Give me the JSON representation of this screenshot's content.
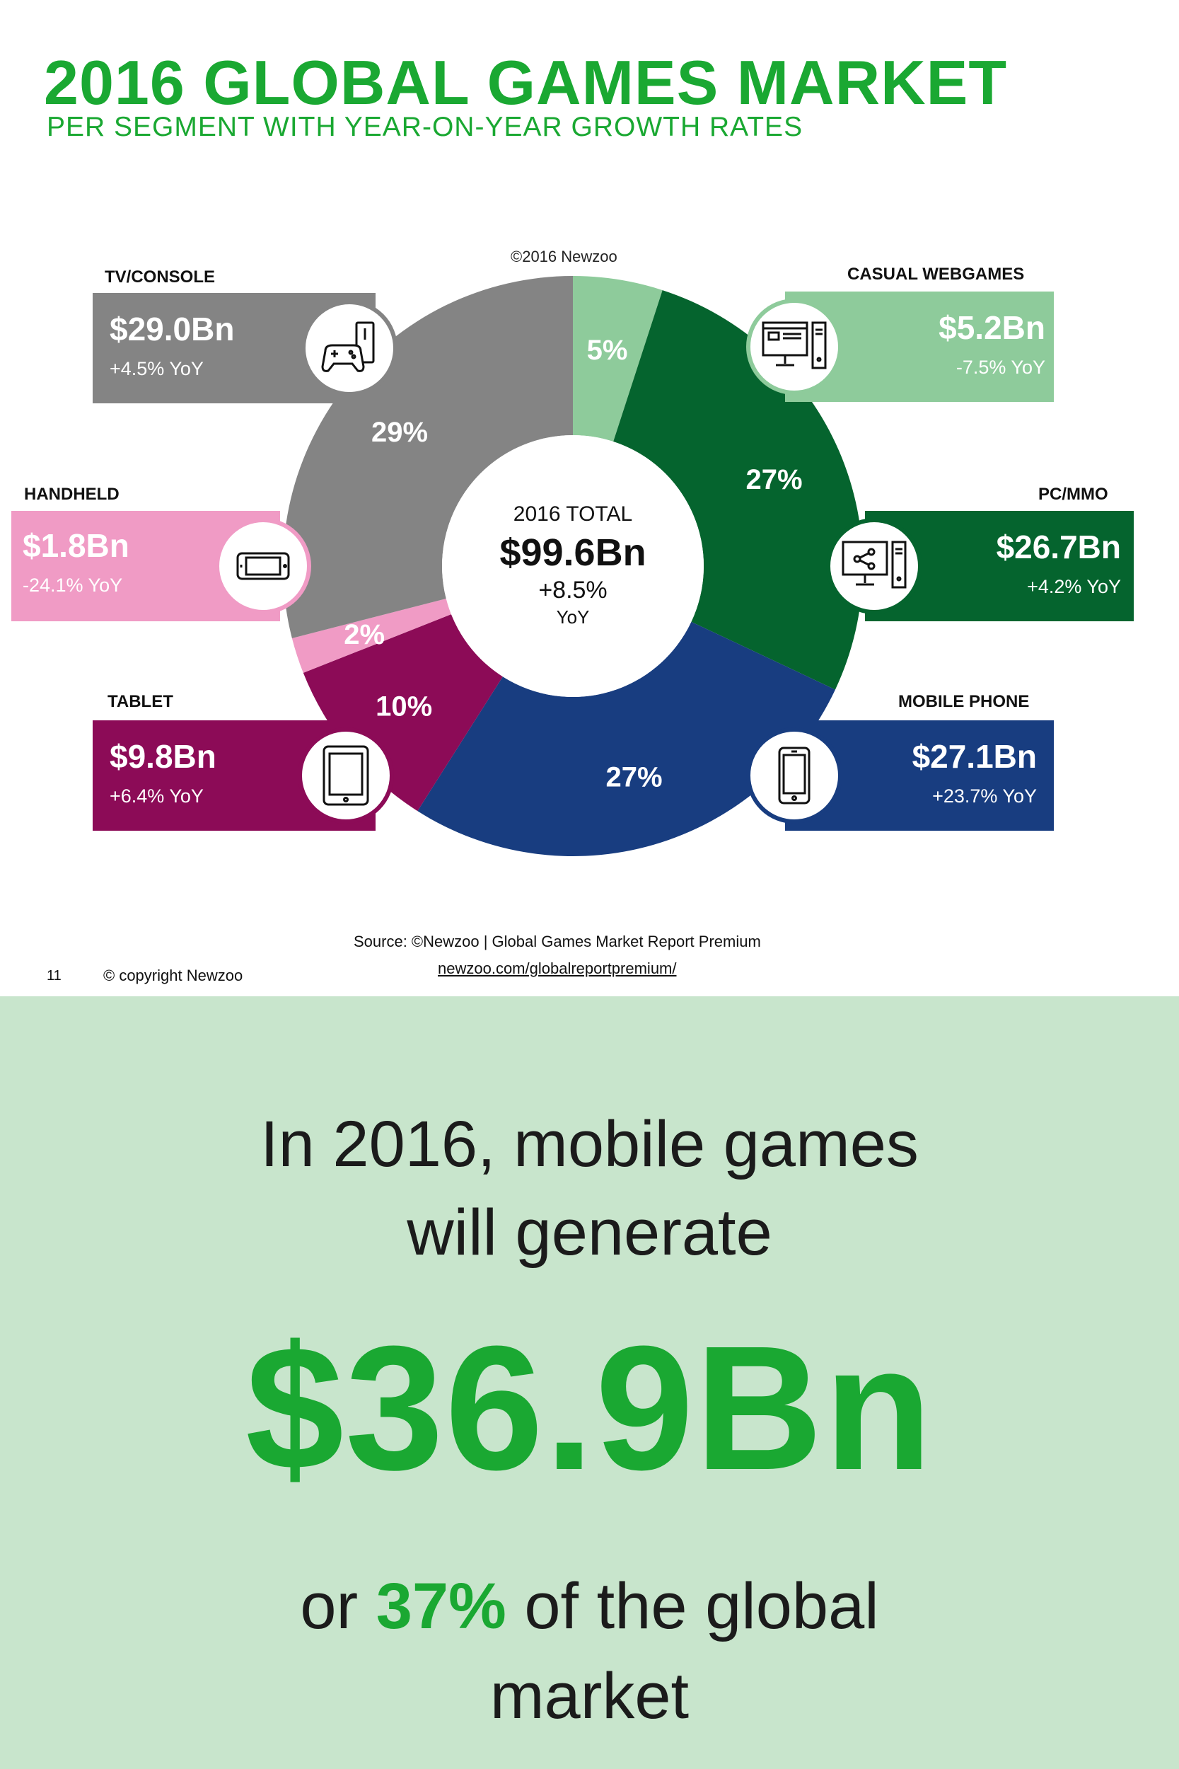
{
  "header": {
    "title": "2016 GLOBAL GAMES MARKET",
    "subtitle": "PER SEGMENT WITH YEAR-ON-YEAR GROWTH RATES",
    "copyright_top": "©2016 Newzoo"
  },
  "chart_data": {
    "type": "pie",
    "title": "2016 GLOBAL GAMES MARKET",
    "subtitle": "PER SEGMENT WITH YEAR-ON-YEAR GROWTH RATES",
    "center": {
      "label": "2016 TOTAL",
      "value": "$99.6Bn",
      "growth": "+8.5%",
      "growth_unit": "YoY"
    },
    "slices": [
      {
        "name": "CASUAL WEBGAMES",
        "percent": 5,
        "pct_label": "5%",
        "value_bn": 5.2,
        "value_label": "$5.2Bn",
        "yoy": "-7.5% YoY",
        "color": "#8ecb9b",
        "icon": "desktop-browser-icon"
      },
      {
        "name": "PC/MMO",
        "percent": 27,
        "pct_label": "27%",
        "value_bn": 26.7,
        "value_label": "$26.7Bn",
        "yoy": "+4.2% YoY",
        "color": "#05642e",
        "icon": "desktop-share-icon"
      },
      {
        "name": "MOBILE PHONE",
        "percent": 27,
        "pct_label": "27%",
        "value_bn": 27.1,
        "value_label": "$27.1Bn",
        "yoy": "+23.7% YoY",
        "color": "#183d80",
        "icon": "smartphone-icon"
      },
      {
        "name": "TABLET",
        "percent": 10,
        "pct_label": "10%",
        "value_bn": 9.8,
        "value_label": "$9.8Bn",
        "yoy": "+6.4% YoY",
        "color": "#8c0b57",
        "icon": "tablet-icon"
      },
      {
        "name": "HANDHELD",
        "percent": 2,
        "pct_label": "2%",
        "value_bn": 1.8,
        "value_label": "$1.8Bn",
        "yoy": "-24.1% YoY",
        "color": "#f09bc5",
        "icon": "handheld-console-icon"
      },
      {
        "name": "TV/CONSOLE",
        "percent": 29,
        "pct_label": "29%",
        "value_bn": 29.0,
        "value_label": "$29.0Bn",
        "yoy": "+4.5% YoY",
        "color": "#848484",
        "icon": "game-console-icon"
      }
    ]
  },
  "footer": {
    "source": "Source: ©Newzoo | Global Games Market Report Premium",
    "url": "newzoo.com/globalreportpremium/",
    "page_number": "11",
    "copyright": "© copyright Newzoo"
  },
  "callout": {
    "line1": "In 2016, mobile games",
    "line2": "will generate",
    "amount": "$36.9Bn",
    "line3_prefix": "or ",
    "line3_pct": "37%",
    "line3_suffix": " of the global",
    "line4": "market"
  }
}
